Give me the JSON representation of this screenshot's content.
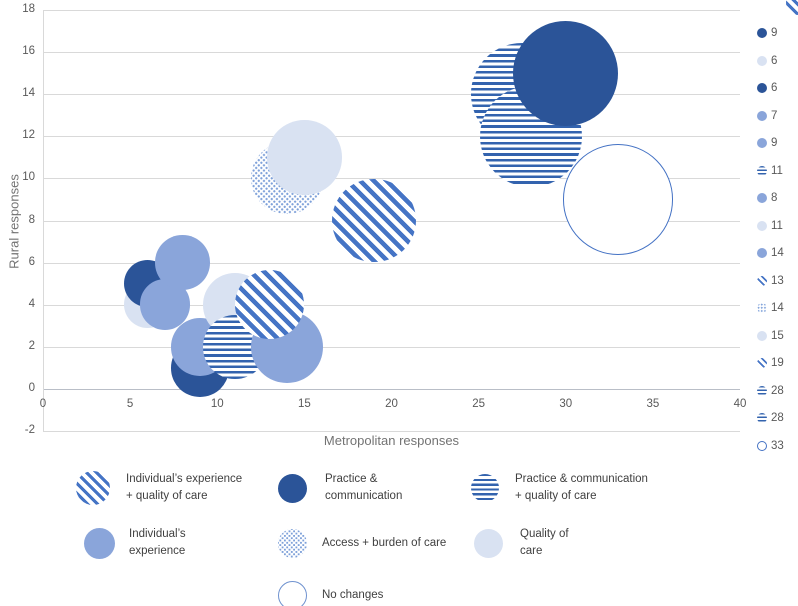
{
  "figure": {
    "x_axis_title": "Metropolitan responses",
    "y_axis_title": "Rural responses"
  },
  "chart_data": {
    "type": "scatter",
    "subtype": "bubble",
    "title": "",
    "xlabel": "Metropolitan responses",
    "ylabel": "Rural responses",
    "xlim": [
      0,
      40
    ],
    "ylim": [
      -2,
      18
    ],
    "x_ticks": [
      0,
      5,
      10,
      15,
      20,
      25,
      30,
      35,
      40
    ],
    "y_ticks": [
      18,
      16,
      14,
      12,
      10,
      8,
      6,
      4,
      2,
      0,
      -2
    ],
    "grid": "horizontal",
    "legend_position": "right",
    "series": [
      {
        "name": "Individual’s experience + quality of care",
        "style": "individual_quality",
        "points": [
          {
            "x": 13,
            "y": 4,
            "size": 13
          },
          {
            "x": 19,
            "y": 8,
            "size": 19
          }
        ]
      },
      {
        "name": "Practice & communication",
        "style": "practice",
        "points": [
          {
            "x": 6,
            "y": 5,
            "size": 6
          },
          {
            "x": 9,
            "y": 1,
            "size": 9
          },
          {
            "x": 30,
            "y": 15,
            "size": 30
          }
        ]
      },
      {
        "name": "Practice & communication + quality of care",
        "style": "practice_quality",
        "points": [
          {
            "x": 11,
            "y": 2,
            "size": 11
          },
          {
            "x": 27.5,
            "y": 14,
            "size": 28
          },
          {
            "x": 28,
            "y": 12,
            "size": 28
          }
        ]
      },
      {
        "name": "Individual’s experience",
        "style": "individual",
        "points": [
          {
            "x": 7,
            "y": 4,
            "size": 7
          },
          {
            "x": 8,
            "y": 6,
            "size": 8
          },
          {
            "x": 9,
            "y": 2,
            "size": 9
          },
          {
            "x": 14,
            "y": 2,
            "size": 14
          }
        ]
      },
      {
        "name": "Access + burden of care",
        "style": "access",
        "points": [
          {
            "x": 14,
            "y": 10,
            "size": 14
          }
        ]
      },
      {
        "name": "Quality of care",
        "style": "quality",
        "points": [
          {
            "x": 6,
            "y": 4,
            "size": 6
          },
          {
            "x": 11,
            "y": 4,
            "size": 11
          },
          {
            "x": 15,
            "y": 11,
            "size": 15
          }
        ]
      },
      {
        "name": "No changes",
        "style": "none",
        "points": [
          {
            "x": 33,
            "y": 9,
            "size": 33
          }
        ]
      }
    ],
    "draw_order": [
      {
        "x": 6,
        "y": 4,
        "size": 6,
        "style": "quality"
      },
      {
        "x": 6,
        "y": 5,
        "size": 6,
        "style": "practice"
      },
      {
        "x": 9,
        "y": 1,
        "size": 9,
        "style": "practice"
      },
      {
        "x": 7,
        "y": 4,
        "size": 7,
        "style": "individual"
      },
      {
        "x": 9,
        "y": 2,
        "size": 9,
        "style": "individual"
      },
      {
        "x": 8,
        "y": 6,
        "size": 8,
        "style": "individual"
      },
      {
        "x": 11,
        "y": 4,
        "size": 11,
        "style": "quality"
      },
      {
        "x": 11,
        "y": 2,
        "size": 11,
        "style": "practice_quality"
      },
      {
        "x": 14,
        "y": 2,
        "size": 14,
        "style": "individual"
      },
      {
        "x": 13,
        "y": 4,
        "size": 13,
        "style": "individual_quality"
      },
      {
        "x": 14,
        "y": 10,
        "size": 14,
        "style": "access"
      },
      {
        "x": 15,
        "y": 11,
        "size": 15,
        "style": "quality"
      },
      {
        "x": 19,
        "y": 8,
        "size": 19,
        "style": "individual_quality"
      },
      {
        "x": 27.5,
        "y": 14,
        "size": 28,
        "style": "practice_quality"
      },
      {
        "x": 28,
        "y": 12,
        "size": 28,
        "style": "practice_quality"
      },
      {
        "x": 30,
        "y": 15,
        "size": 30,
        "style": "practice"
      },
      {
        "x": 33,
        "y": 9,
        "size": 33,
        "style": "none"
      }
    ],
    "size_legend": [
      {
        "value": "9",
        "style": "practice"
      },
      {
        "value": "6",
        "style": "quality"
      },
      {
        "value": "6",
        "style": "practice"
      },
      {
        "value": "7",
        "style": "individual"
      },
      {
        "value": "9",
        "style": "individual"
      },
      {
        "value": "11",
        "style": "practice_quality"
      },
      {
        "value": "8",
        "style": "individual"
      },
      {
        "value": "11",
        "style": "quality"
      },
      {
        "value": "14",
        "style": "individual"
      },
      {
        "value": "13",
        "style": "individual_quality"
      },
      {
        "value": "14",
        "style": "access"
      },
      {
        "value": "15",
        "style": "quality"
      },
      {
        "value": "19",
        "style": "individual_quality"
      },
      {
        "value": "28",
        "style": "practice_quality"
      },
      {
        "value": "28",
        "style": "practice_quality"
      },
      {
        "value": "33",
        "style": "none"
      }
    ],
    "category_legend": [
      {
        "lines": [
          "Individual’s experience",
          "+ quality of care"
        ],
        "style": "individual_quality"
      },
      {
        "lines": [
          "Practice &",
          "communication"
        ],
        "style": "practice"
      },
      {
        "lines": [
          "Practice & communication",
          "+ quality of care"
        ],
        "style": "practice_quality"
      },
      {
        "lines": [
          "Individual’s",
          "experience"
        ],
        "style": "individual"
      },
      {
        "lines": [
          "Access + burden of care"
        ],
        "style": "access"
      },
      {
        "lines": [
          "Quality of",
          "care"
        ],
        "style": "quality"
      },
      {
        "lines": [
          "No changes"
        ],
        "style": "none"
      }
    ]
  },
  "colors": {
    "dark_blue": "#2b5498",
    "medium_blue": "#8aa5da",
    "pale_blue": "#d9e2f2",
    "stripe_blue": "#3363ae",
    "diagonal_stripe_blue": "#4574c5",
    "dot_blue": "#7da0d9",
    "open_circle_stroke": "#4472c4",
    "gridline": "#d9d9d9",
    "axis_text": "#595959",
    "axis_title_text": "#737373",
    "legend_text": "#3f3f3f"
  }
}
